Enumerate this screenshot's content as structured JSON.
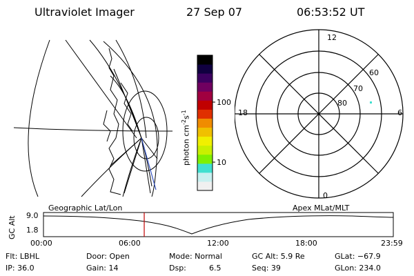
{
  "header": {
    "instrument": "Ultraviolet Imager",
    "date": "27 Sep 07",
    "time": "06:53:52 UT"
  },
  "colorbar": {
    "unit_label": "photon cm",
    "unit_exp1": "-2",
    "unit_mid": "s",
    "unit_exp2": "-1",
    "ticks": [
      {
        "label": "100",
        "value": 100
      },
      {
        "label": "10",
        "value": 10
      }
    ],
    "colors": [
      "#f0f0f0",
      "#c8f0f0",
      "#40e0d0",
      "#80f000",
      "#c8f000",
      "#f0f000",
      "#f0c000",
      "#f08c00",
      "#e03000",
      "#c00000",
      "#a00040",
      "#700060",
      "#3c0060",
      "#100040",
      "#000000"
    ]
  },
  "left_map": {
    "label": "Geographic Lat/Lon"
  },
  "polar_plot": {
    "label": "Apex MLat/MLT",
    "mlt_labels": {
      "top": "12",
      "left": "18",
      "right": "6",
      "bottom": "0"
    },
    "lat_labels": [
      "60",
      "70",
      "80"
    ],
    "point_color": "#40e0d0"
  },
  "altitude_plot": {
    "ylabel": "GC Alt",
    "yticks": [
      "9.0",
      "1.8"
    ],
    "xticks": [
      "00:00",
      "06:00",
      "12:00",
      "18:00",
      "23:59"
    ],
    "current_time_fraction": 0.288,
    "marker_color": "#c00000"
  },
  "info": {
    "flt": "Flt: LBHL",
    "door": "Door: Open",
    "mode": "Mode: Normal",
    "gc_alt": "GC Alt: 5.9 Re",
    "glat": "GLat: −67.9",
    "ip": "IP: 36.0",
    "gain": "Gain: 14",
    "dsp_label": "Dsp:",
    "dsp_value": "6.5",
    "seq": "Seq: 39",
    "glon": "GLon: 234.0"
  }
}
